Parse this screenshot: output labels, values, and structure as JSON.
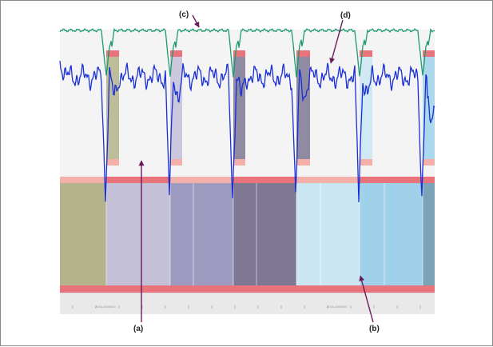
{
  "annotations": [
    {
      "id": "a",
      "text": "(a)"
    },
    {
      "id": "b",
      "text": "(b)"
    },
    {
      "id": "c",
      "text": "(c)"
    },
    {
      "id": "d",
      "text": "(d)"
    }
  ],
  "colors": {
    "upper_bg": "#f4f4f4",
    "lower_bg": "#dcdcdc",
    "timeline_bg": "#e9e9e9",
    "blue_trace": "#1a2fd6",
    "green_trace": "#1f9a6e",
    "red_band": "#e9737a",
    "pink_band": "#f2b0a8",
    "arrow": "#6a1a5a",
    "segment_colors": [
      "#b4b38a",
      "#c3c0d8",
      "#9d9cc0",
      "#7e7894",
      "#c9e6f2",
      "#9fd2ea",
      "#7aa3b8"
    ]
  },
  "timeline": {
    "tick_labels": [
      "2016.0406000",
      "2016.2006000"
    ]
  }
}
